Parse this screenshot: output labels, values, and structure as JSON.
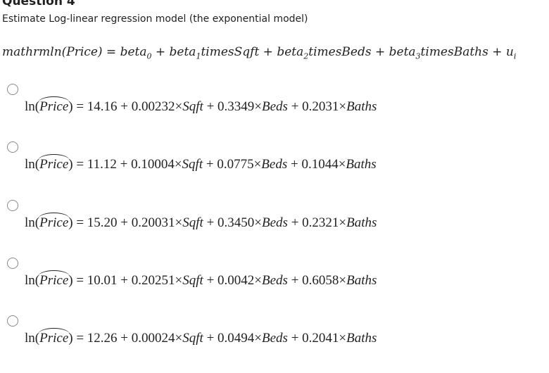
{
  "question": {
    "title": "Question 4",
    "prompt": "Estimate Log-linear regression model (the exponential model)",
    "model": [
      "mathrmln(Price) = beta",
      "0",
      " + beta",
      "1",
      "timesSqft + beta",
      "2",
      "timesBeds + beta",
      "3",
      "timesBaths + u",
      "i"
    ],
    "options": [
      {
        "lead": "ln(",
        "hat": "Price",
        "tail": ") = 14.16 + 0.00232×Sqft + 0.3349×Beds + 0.2031×Baths"
      },
      {
        "lead": "ln(",
        "hat": "Price",
        "tail": ") = 11.12 + 0.10004×Sqft + 0.0775×Beds + 0.1044×Baths"
      },
      {
        "lead": "ln(",
        "hat": "Price",
        "tail": ") = 15.20 + 0.20031×Sqft + 0.3450×Beds + 0.2321×Baths"
      },
      {
        "lead": "ln(",
        "hat": "Price",
        "tail": ") = 10.01 + 0.20251×Sqft + 0.0042×Beds + 0.6058×Baths"
      },
      {
        "lead": "ln(",
        "hat": "Price",
        "tail": ") = 12.26 + 0.00024×Sqft + 0.0494×Beds + 0.2041×Baths"
      }
    ]
  }
}
